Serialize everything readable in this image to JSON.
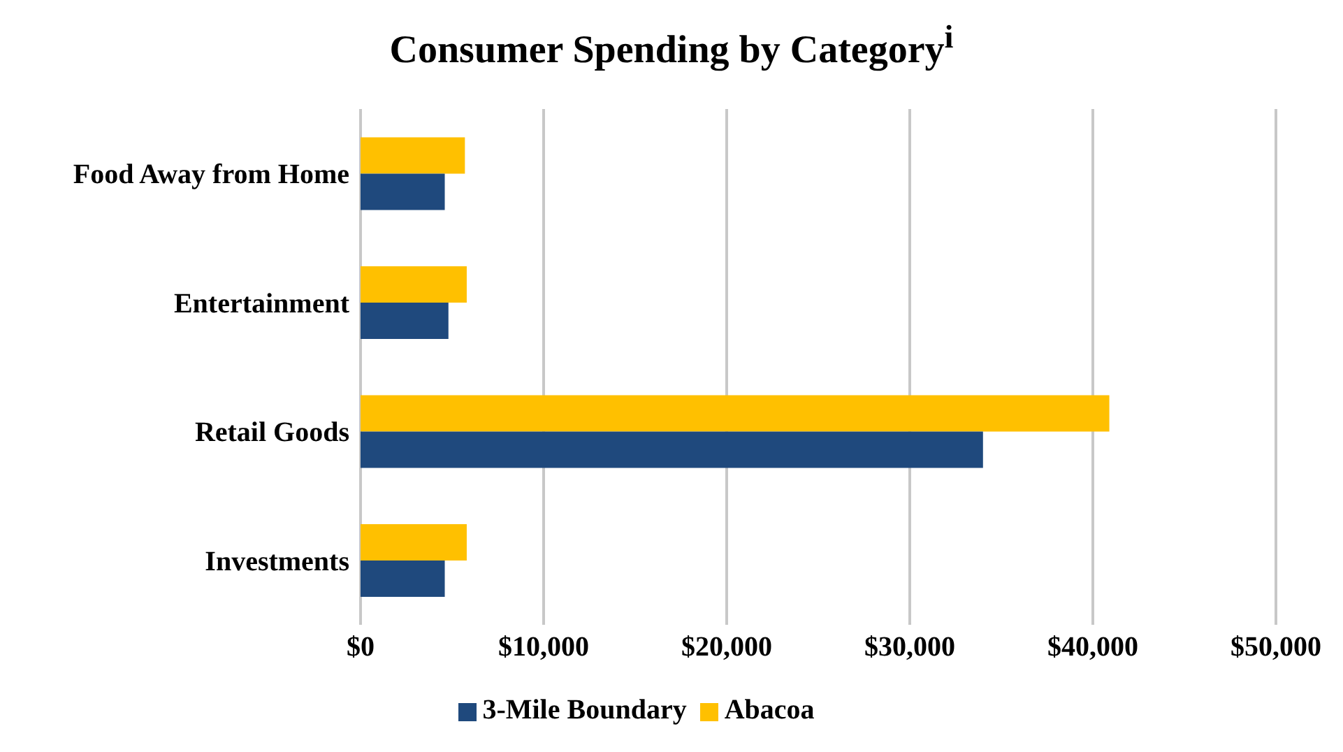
{
  "chart_data": {
    "type": "bar",
    "orientation": "horizontal",
    "title": "Consumer Spending by Category$^{i}$",
    "categories": [
      "Food Away from Home",
      "Entertainment",
      "Retail Goods",
      "Investments"
    ],
    "series": [
      {
        "name": "Abacoa",
        "color": "#ffc000",
        "values": [
          5700,
          5800,
          40900,
          5800
        ]
      },
      {
        "name": "3-Mile Boundary",
        "color": "#1f497d",
        "values": [
          4600,
          4800,
          34000,
          4600
        ]
      }
    ],
    "xlim": [
      0,
      50000
    ],
    "xticks": [
      {
        "value": 0,
        "label": "$0"
      },
      {
        "value": 10000,
        "label": "$10,000"
      },
      {
        "value": 20000,
        "label": "$20,000"
      },
      {
        "value": 30000,
        "label": "$30,000"
      },
      {
        "value": 40000,
        "label": "$40,000"
      },
      {
        "value": 50000,
        "label": "$50,000"
      }
    ],
    "grid": "x",
    "legend": "bottom"
  }
}
